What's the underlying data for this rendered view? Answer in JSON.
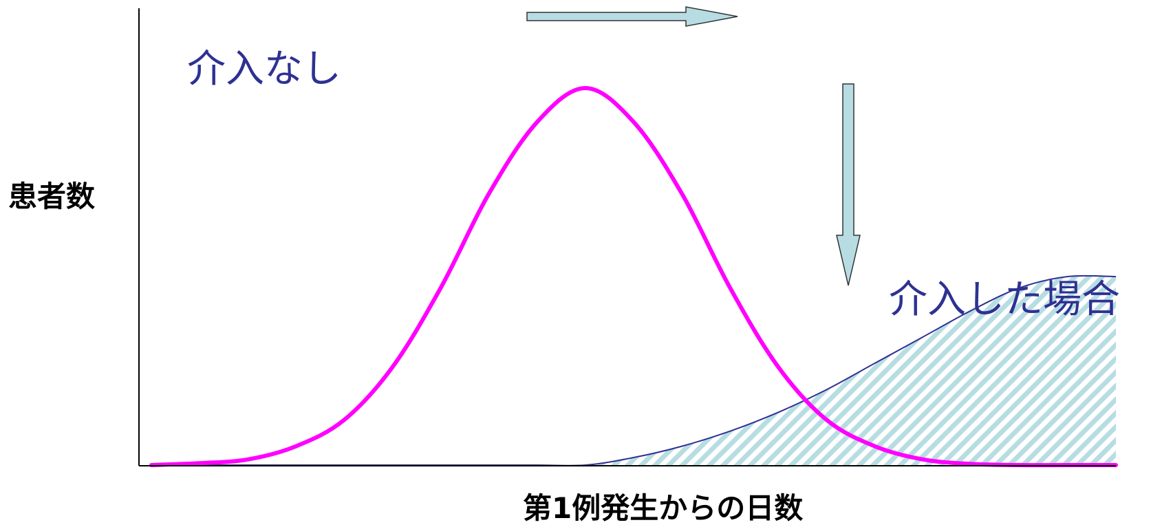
{
  "chart_data": {
    "type": "area",
    "title": "",
    "xlabel": "第1例発生からの日数",
    "ylabel": "患者数",
    "grid": false,
    "legend": "none",
    "xlim": [
      0,
      100
    ],
    "ylim": [
      0,
      100
    ],
    "series": [
      {
        "name": "介入なし",
        "style": "line",
        "color": "#ff00ff",
        "x": [
          0,
          5,
          10,
          15,
          20,
          25,
          30,
          35,
          40,
          45,
          50,
          55,
          60,
          65,
          70,
          75,
          80,
          85,
          90,
          95,
          100
        ],
        "values": [
          0,
          0.5,
          1.5,
          5,
          12,
          26,
          47,
          72,
          91,
          100,
          91,
          72,
          47,
          26,
          12,
          5,
          1.5,
          0.3,
          0,
          0,
          0
        ]
      },
      {
        "name": "介入した場合",
        "style": "hatched-area",
        "color": "#2e3192",
        "fill": "#b7dde3",
        "x": [
          0,
          5,
          10,
          15,
          20,
          25,
          30,
          35,
          40,
          45,
          50,
          55,
          60,
          65,
          70,
          75,
          80,
          85,
          90,
          95,
          100
        ],
        "values": [
          0,
          0,
          0,
          0,
          0,
          0,
          0,
          0,
          0,
          0,
          2,
          5,
          9,
          14,
          20,
          27,
          34,
          41,
          47,
          50,
          50
        ]
      }
    ],
    "annotations": [
      {
        "text": "介入なし",
        "color": "#2e3192"
      },
      {
        "text": "介入した場合",
        "color": "#2e3192"
      }
    ],
    "arrows": [
      {
        "direction": "right",
        "color": "#b7dde3"
      },
      {
        "direction": "down",
        "color": "#b7dde3"
      }
    ]
  }
}
